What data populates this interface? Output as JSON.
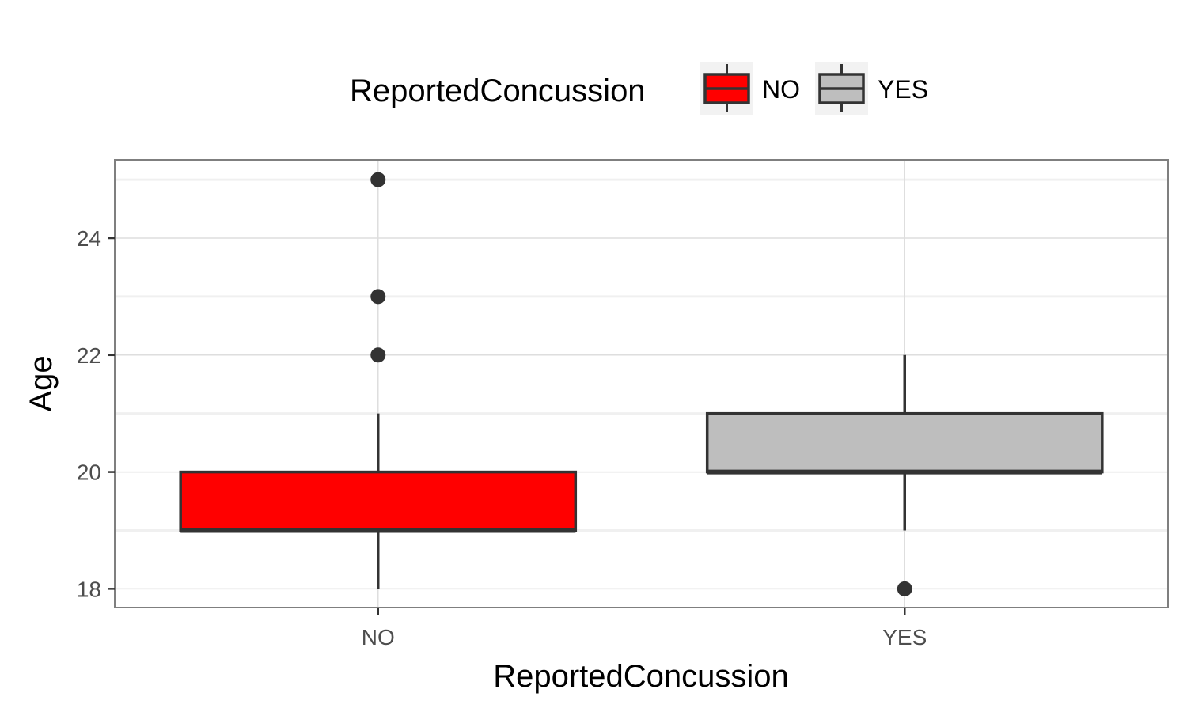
{
  "chart_data": {
    "type": "boxplot",
    "title": "",
    "xlabel": "ReportedConcussion",
    "ylabel": "Age",
    "ylim": [
      17.68,
      25.34
    ],
    "yticks": [
      "18",
      "20",
      "22",
      "24"
    ],
    "categories": [
      "NO",
      "YES"
    ],
    "grid": true,
    "legend": {
      "title": "ReportedConcussion",
      "placement": "top",
      "entries": [
        "NO",
        "YES"
      ]
    },
    "series": [
      {
        "name": "NO",
        "color": "#ff0000",
        "whisker_low": 18,
        "q1": 19,
        "median": 19,
        "q3": 20,
        "whisker_high": 21,
        "outliers": [
          22,
          23,
          25
        ]
      },
      {
        "name": "YES",
        "color": "#bebebe",
        "whisker_low": 19,
        "q1": 20,
        "median": 20,
        "q3": 21,
        "whisker_high": 22,
        "outliers": [
          18
        ]
      }
    ]
  }
}
